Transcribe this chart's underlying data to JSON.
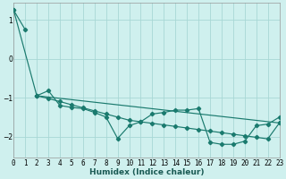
{
  "xlabel": "Humidex (Indice chaleur)",
  "background_color": "#cff0ee",
  "grid_color": "#a8d8d5",
  "line_color": "#1a7a6e",
  "xlim": [
    0,
    23
  ],
  "ylim": [
    -2.55,
    1.45
  ],
  "yticks": [
    -2,
    -1,
    0,
    1
  ],
  "xticks": [
    0,
    1,
    2,
    3,
    4,
    5,
    6,
    7,
    8,
    9,
    10,
    11,
    12,
    13,
    14,
    15,
    16,
    17,
    18,
    19,
    20,
    21,
    22,
    23
  ],
  "series1_x": [
    0,
    1
  ],
  "series1_y": [
    1.25,
    0.75
  ],
  "series2_x": [
    2,
    3,
    4,
    5,
    6,
    7,
    8,
    9,
    10,
    11,
    12,
    13,
    14,
    15,
    16,
    17,
    18,
    19,
    20,
    21,
    22,
    23
  ],
  "series2_y": [
    -0.95,
    -0.82,
    -1.2,
    -1.25,
    -1.28,
    -1.38,
    -1.5,
    -2.05,
    -1.72,
    -1.62,
    -1.42,
    -1.38,
    -1.32,
    -1.32,
    -1.28,
    -2.15,
    -2.2,
    -2.2,
    -2.12,
    -1.72,
    -1.68,
    -1.5
  ],
  "series3_x": [
    2,
    3,
    4,
    5,
    6,
    7,
    8,
    9,
    10,
    11,
    12,
    13,
    14,
    15,
    16,
    17,
    18,
    19,
    20,
    21,
    22,
    23
  ],
  "series3_y": [
    -0.95,
    -1.02,
    -1.1,
    -1.18,
    -1.26,
    -1.34,
    -1.42,
    -1.5,
    -1.58,
    -1.62,
    -1.66,
    -1.7,
    -1.74,
    -1.78,
    -1.82,
    -1.86,
    -1.9,
    -1.94,
    -1.98,
    -2.02,
    -2.06,
    -1.65
  ],
  "series4_x": [
    0,
    2,
    23
  ],
  "series4_y": [
    1.25,
    -0.95,
    -1.65
  ],
  "marker": "D",
  "markersize": 2.2,
  "linewidth": 0.85
}
